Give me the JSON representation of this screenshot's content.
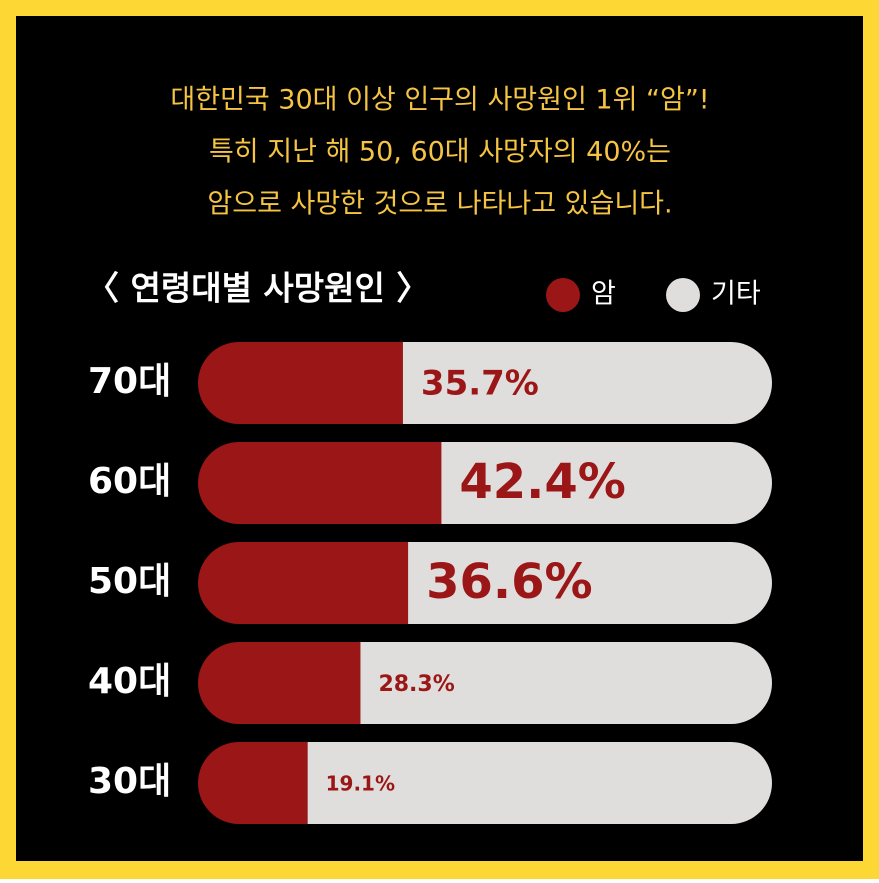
{
  "chart_data": {
    "type": "bar",
    "orientation": "horizontal",
    "title_lines": [
      "대한민국 30대 이상 인구의 사망원인 1위 “암”!",
      "특히 지난  해 50, 60대 사망자의 40%는",
      "암으로 사망한 것으로 나타나고 있습니다."
    ],
    "subtitle": "〈 연령대별 사망원인 〉",
    "categories": [
      "70대",
      "60대",
      "50대",
      "40대",
      "30대"
    ],
    "series": [
      {
        "name": "암",
        "color": "#9b1616",
        "values": [
          35.7,
          42.4,
          36.6,
          28.3,
          19.1
        ],
        "value_labels": [
          "35.7%",
          "42.4%",
          "36.6%",
          "28.3%",
          "19.1%"
        ]
      },
      {
        "name": "기타",
        "color": "#e0dedd",
        "values": [
          64.3,
          57.6,
          63.4,
          71.7,
          80.9
        ]
      }
    ],
    "xlim": [
      0,
      100
    ],
    "stacked": true,
    "grid": false
  }
}
